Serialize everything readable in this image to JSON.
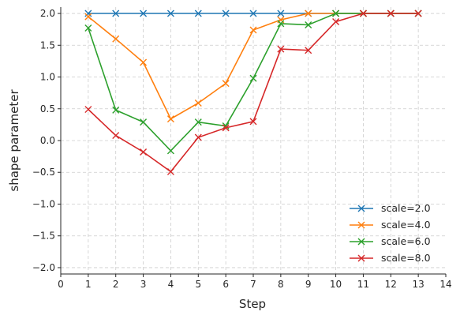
{
  "chart_data": {
    "type": "line",
    "title": "",
    "xlabel": "Step",
    "ylabel": "shape parameter",
    "xlim": [
      0,
      14
    ],
    "ylim": [
      -2.1,
      2.1
    ],
    "xticks": [
      0,
      1,
      2,
      3,
      4,
      5,
      6,
      7,
      8,
      9,
      10,
      11,
      12,
      13,
      14
    ],
    "xtick_labels": [
      "0",
      "1",
      "2",
      "3",
      "4",
      "5",
      "6",
      "7",
      "8",
      "9",
      "10",
      "11",
      "12",
      "13",
      "14"
    ],
    "yticks": [
      -2.0,
      -1.5,
      -1.0,
      -0.5,
      0.0,
      0.5,
      1.0,
      1.5,
      2.0
    ],
    "ytick_labels": [
      "−2.0",
      "−1.5",
      "−1.0",
      "−0.5",
      "0.0",
      "0.5",
      "1.0",
      "1.5",
      "2.0"
    ],
    "grid": true,
    "legend_position": "lower-right",
    "marker": "x",
    "x": [
      1,
      2,
      3,
      4,
      5,
      6,
      7,
      8,
      9,
      10,
      11,
      12,
      13
    ],
    "series": [
      {
        "name": "scale=2.0",
        "color": "#1f77b4",
        "values": [
          2.0,
          2.0,
          2.0,
          2.0,
          2.0,
          2.0,
          2.0,
          2.0,
          2.0,
          2.0,
          2.0,
          2.0,
          2.0
        ]
      },
      {
        "name": "scale=4.0",
        "color": "#ff7f0e",
        "values": [
          1.95,
          1.6,
          1.23,
          0.34,
          0.59,
          0.9,
          1.74,
          1.9,
          2.0,
          2.0,
          2.0,
          2.0,
          2.0
        ]
      },
      {
        "name": "scale=6.0",
        "color": "#2ca02c",
        "values": [
          1.77,
          0.48,
          0.29,
          -0.16,
          0.29,
          0.23,
          0.98,
          1.84,
          1.82,
          2.0,
          2.0,
          2.0,
          2.0
        ]
      },
      {
        "name": "scale=8.0",
        "color": "#d62728",
        "values": [
          0.49,
          0.08,
          -0.18,
          -0.49,
          0.05,
          0.2,
          0.3,
          1.44,
          1.42,
          1.87,
          2.0,
          2.0,
          2.0
        ]
      }
    ]
  }
}
